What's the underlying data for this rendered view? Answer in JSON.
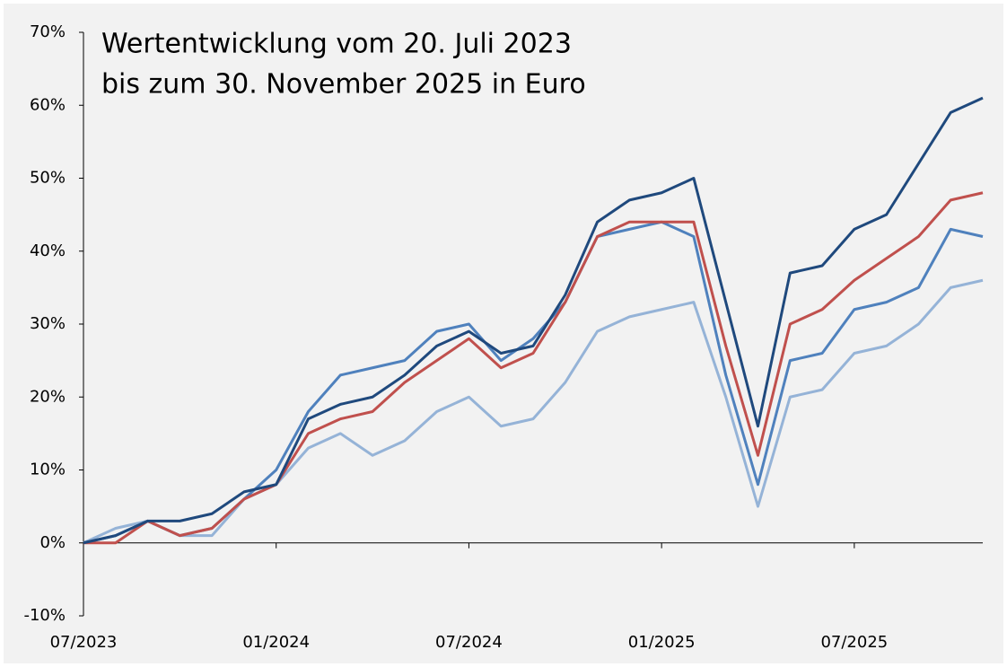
{
  "chart_data": {
    "type": "line",
    "title": [
      "Wertentwicklung vom 20. Juli 2023",
      "bis zum 30. November 2025 in Euro"
    ],
    "x": [
      "2023-07",
      "2023-08",
      "2023-09",
      "2023-10",
      "2023-11",
      "2023-12",
      "2024-01",
      "2024-02",
      "2024-03",
      "2024-04",
      "2024-05",
      "2024-06",
      "2024-07",
      "2024-08",
      "2024-09",
      "2024-10",
      "2024-11",
      "2024-12",
      "2025-01",
      "2025-02",
      "2025-03",
      "2025-04",
      "2025-05",
      "2025-06",
      "2025-07",
      "2025-08",
      "2025-09",
      "2025-10",
      "2025-11"
    ],
    "series": [
      {
        "color": "#95b3d7",
        "values": [
          0,
          2,
          3,
          1,
          1,
          6,
          8,
          13,
          15,
          12,
          14,
          18,
          20,
          16,
          17,
          22,
          29,
          31,
          32,
          33,
          20,
          5,
          20,
          21,
          26,
          27,
          30,
          35,
          36
        ]
      },
      {
        "color": "#4f81bd",
        "values": [
          0,
          1,
          3,
          1,
          2,
          6,
          10,
          18,
          23,
          24,
          25,
          29,
          30,
          25,
          28,
          33,
          42,
          43,
          44,
          42,
          23,
          8,
          25,
          26,
          32,
          33,
          35,
          43,
          42
        ]
      },
      {
        "color": "#c0504d",
        "values": [
          0,
          0,
          3,
          1,
          2,
          6,
          8,
          15,
          17,
          18,
          22,
          25,
          28,
          24,
          26,
          33,
          42,
          44,
          44,
          44,
          27,
          12,
          30,
          32,
          36,
          39,
          42,
          47,
          48
        ]
      },
      {
        "color": "#1f497d",
        "values": [
          0,
          1,
          3,
          3,
          4,
          7,
          8,
          17,
          19,
          20,
          23,
          27,
          29,
          26,
          27,
          34,
          44,
          47,
          48,
          50,
          33,
          16,
          37,
          38,
          43,
          45,
          52,
          59,
          61
        ]
      }
    ],
    "xlim": [
      "2023-07",
      "2025-11"
    ],
    "xticks": [
      {
        "value": "2023-07",
        "label": "07/2023"
      },
      {
        "value": "2024-01",
        "label": "01/2024"
      },
      {
        "value": "2024-07",
        "label": "07/2024"
      },
      {
        "value": "2025-01",
        "label": "01/2025"
      },
      {
        "value": "2025-07",
        "label": "07/2025"
      }
    ],
    "ylim": [
      -10,
      70
    ],
    "yticks": [
      {
        "value": -10,
        "label": "-10%"
      },
      {
        "value": 0,
        "label": "0%"
      },
      {
        "value": 10,
        "label": "10%"
      },
      {
        "value": 20,
        "label": "20%"
      },
      {
        "value": 30,
        "label": "30%"
      },
      {
        "value": 40,
        "label": "40%"
      },
      {
        "value": 50,
        "label": "50%"
      },
      {
        "value": 60,
        "label": "60%"
      },
      {
        "value": 70,
        "label": "70%"
      }
    ]
  }
}
